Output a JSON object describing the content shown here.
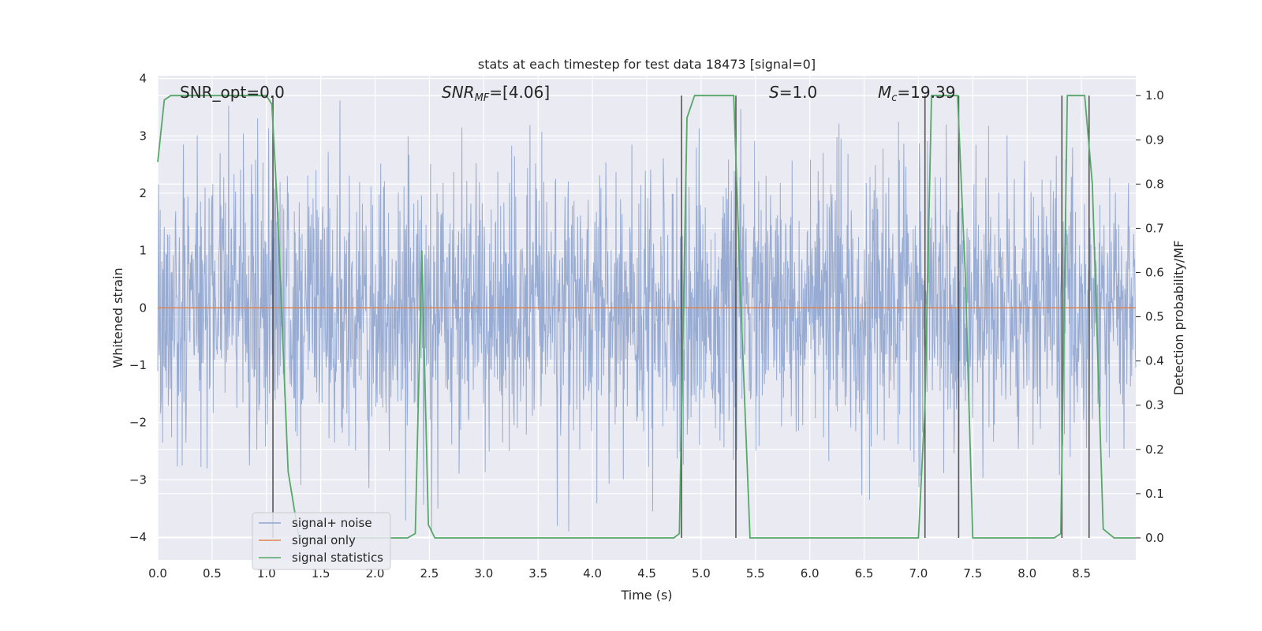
{
  "chart_data": {
    "type": "line",
    "title": "stats at each timestep for test data 18473 [signal=0]",
    "xlabel": "Time (s)",
    "ylabel": "Whitened strain",
    "y2label": "Detection probability/MF",
    "xlim": [
      0.0,
      9.0
    ],
    "ylim": [
      -4.4,
      4.05
    ],
    "y2lim": [
      -0.05,
      1.045
    ],
    "xticks": [
      "0.0",
      "0.5",
      "1.0",
      "1.5",
      "2.0",
      "2.5",
      "3.0",
      "3.5",
      "4.0",
      "4.5",
      "5.0",
      "5.5",
      "6.0",
      "6.5",
      "7.0",
      "7.5",
      "8.0",
      "8.5"
    ],
    "yticks": [
      "4",
      "3",
      "2",
      "1",
      "0",
      "−1",
      "−2",
      "−3",
      "−4"
    ],
    "y2ticks": [
      "1.0",
      "0.9",
      "0.8",
      "0.7",
      "0.6",
      "0.5",
      "0.4",
      "0.3",
      "0.2",
      "0.1",
      "0.0"
    ],
    "grid": true,
    "legend_position": "lower-left",
    "annotations": {
      "snr_opt": "SNR_opt=0.0",
      "snr_mf_main": "SNR",
      "snr_mf_sub": "MF",
      "snr_mf_value": "=[4.06]",
      "s_main": "S",
      "s_value": "=1.0",
      "mc_main": "M",
      "mc_sub": "c",
      "mc_value": "=19.39"
    },
    "series": [
      {
        "name": "signal+ noise",
        "color": "#8fa5cf",
        "description": "whitened strain noise, range about -3.9 to 3.7",
        "approx_envelope": [
          -3.9,
          3.7
        ]
      },
      {
        "name": "signal only",
        "color": "#dd8452",
        "x": [
          0.0,
          9.0
        ],
        "y": [
          0.0,
          0.0
        ]
      },
      {
        "name": "signal statistics",
        "color": "#55a868",
        "axis": "right",
        "x": [
          0.0,
          0.06,
          0.12,
          1.0,
          1.05,
          1.1,
          1.2,
          1.3,
          2.3,
          2.37,
          2.43,
          2.49,
          2.55,
          4.75,
          4.8,
          4.87,
          4.94,
          5.3,
          5.37,
          5.45,
          7.0,
          7.06,
          7.12,
          7.36,
          7.43,
          7.5,
          8.25,
          8.31,
          8.37,
          8.53,
          8.6,
          8.7,
          8.8,
          9.0
        ],
        "y": [
          0.85,
          0.99,
          1.0,
          1.0,
          0.98,
          0.75,
          0.15,
          0.0,
          0.0,
          0.01,
          0.65,
          0.03,
          0.0,
          0.0,
          0.01,
          0.95,
          1.0,
          1.0,
          0.5,
          0.0,
          0.0,
          0.3,
          1.0,
          1.0,
          0.6,
          0.0,
          0.0,
          0.01,
          1.0,
          1.0,
          0.8,
          0.02,
          0.0,
          0.0
        ]
      }
    ],
    "vertical_markers": [
      1.06,
      4.82,
      5.32,
      7.06,
      7.37,
      8.32,
      8.57
    ]
  }
}
